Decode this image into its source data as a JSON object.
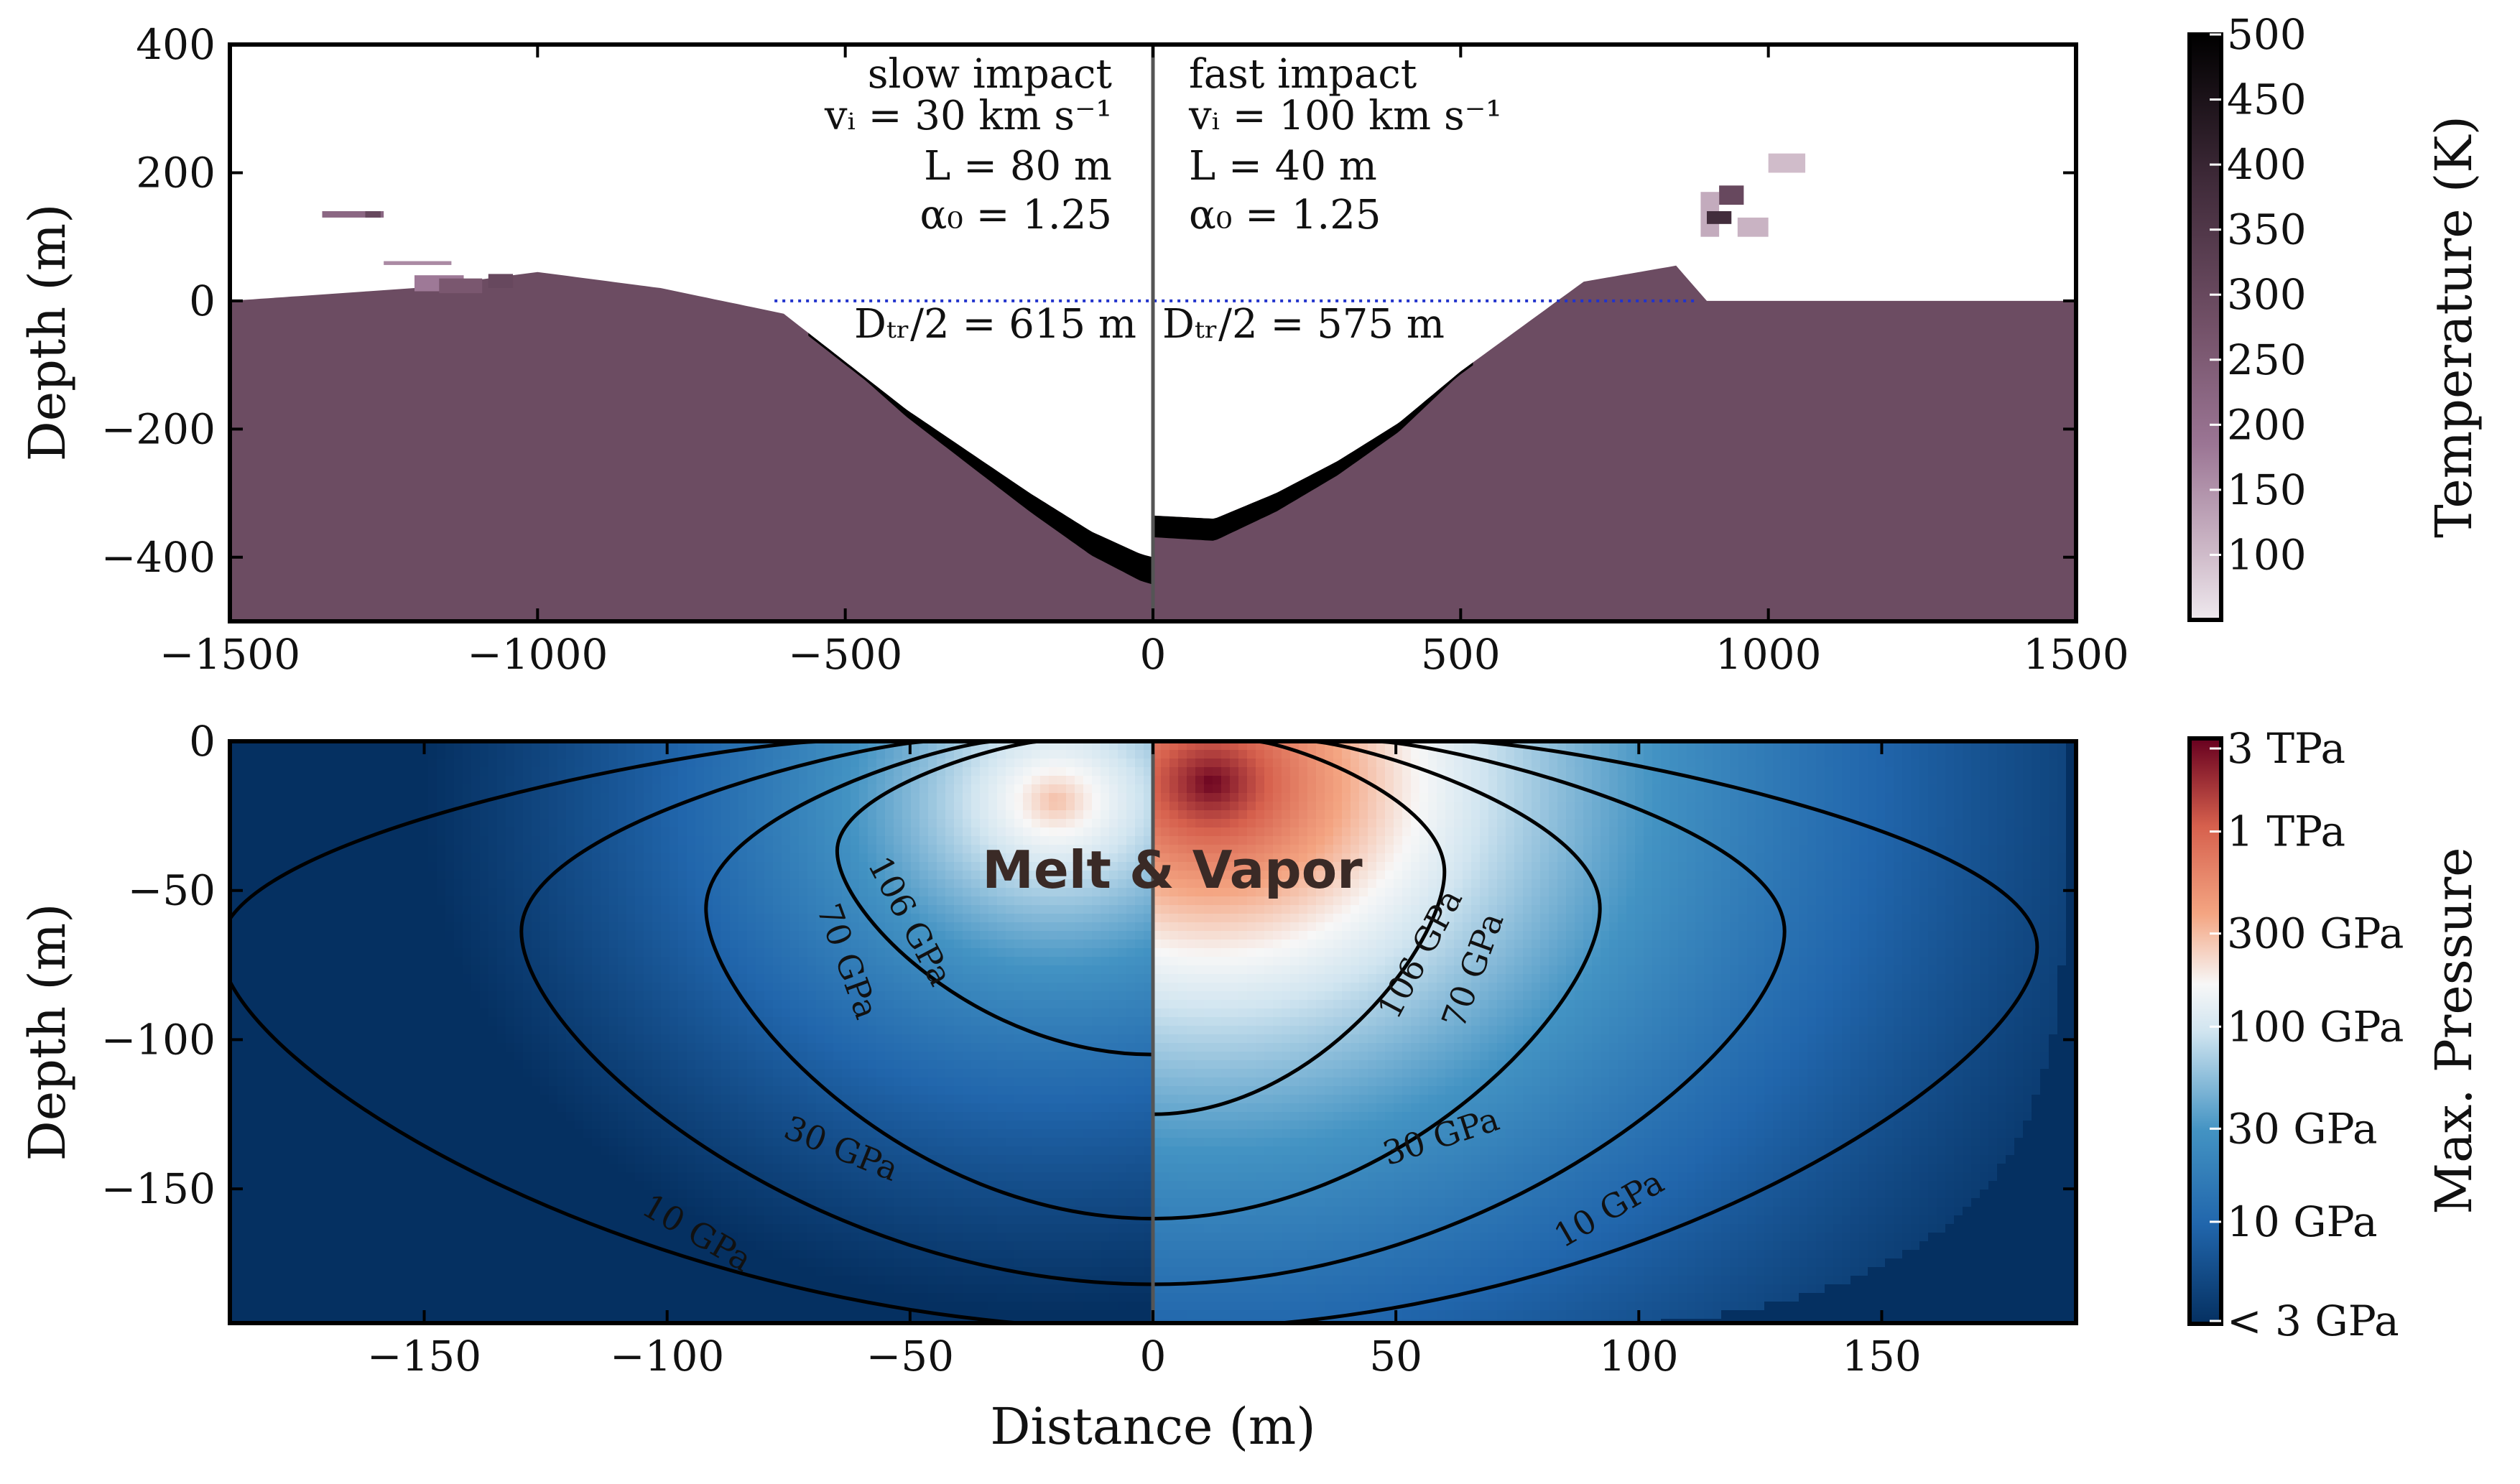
{
  "chart_data": [
    {
      "type": "heatmap",
      "panel": "top",
      "description_key": "temperature field of crater",
      "xlim": [
        -1500,
        1500
      ],
      "ylim": [
        -500,
        400
      ],
      "xticks": [
        "−1500",
        "−1000",
        "−500",
        "0",
        "500",
        "1000",
        "1500"
      ],
      "xtick_values": [
        -1500,
        -1000,
        -500,
        0,
        500,
        1000,
        1500
      ],
      "yticks": [
        "400",
        "200",
        "0",
        "−200",
        "−400"
      ],
      "ytick_values": [
        400,
        200,
        0,
        -200,
        -400
      ],
      "ylabel": "Depth (m)",
      "colorbar": {
        "label": "Temperature (K)",
        "range": [
          50,
          500
        ],
        "ticks": [
          "500",
          "450",
          "400",
          "350",
          "300",
          "250",
          "200",
          "150",
          "100"
        ],
        "tick_values": [
          500,
          450,
          400,
          350,
          300,
          250,
          200,
          150,
          100
        ]
      },
      "left": {
        "label_lines": [
          "slow impact",
          "vᵢ = 30 km s⁻¹",
          "L = 80 m",
          "α₀ = 1.25"
        ],
        "diameter_label": "Dₜᵣ/2 = 615 m",
        "transient_radius": 615,
        "crater_profile": [
          [
            -1500,
            0
          ],
          [
            -1200,
            20
          ],
          [
            -1000,
            45
          ],
          [
            -800,
            20
          ],
          [
            -600,
            -20
          ],
          [
            -400,
            -170
          ],
          [
            -200,
            -300
          ],
          [
            -100,
            -360
          ],
          [
            -20,
            -395
          ],
          [
            0,
            -400
          ]
        ]
      },
      "right": {
        "label_lines": [
          "fast impact",
          "vᵢ = 100 km s⁻¹",
          "L = 40 m",
          "α₀ = 1.25"
        ],
        "diameter_label": "Dₜᵣ/2 = 575 m",
        "transient_radius": 575,
        "crater_profile": [
          [
            0,
            -335
          ],
          [
            100,
            -340
          ],
          [
            200,
            -300
          ],
          [
            300,
            -250
          ],
          [
            400,
            -190
          ],
          [
            500,
            -110
          ],
          [
            600,
            -40
          ],
          [
            700,
            30
          ],
          [
            850,
            55
          ],
          [
            900,
            0
          ],
          [
            1500,
            0
          ]
        ]
      },
      "target_temperature": 290,
      "melt_temperature_band": 500
    },
    {
      "type": "heatmap",
      "panel": "bottom",
      "description_key": "maximum pressure field with contours",
      "xlim": [
        -190,
        190
      ],
      "ylim": [
        -195,
        0
      ],
      "xticks": [
        "−150",
        "−100",
        "−50",
        "0",
        "50",
        "100",
        "150"
      ],
      "xtick_values": [
        -150,
        -100,
        -50,
        0,
        50,
        100,
        150
      ],
      "yticks": [
        "0",
        "−50",
        "−100",
        "−150"
      ],
      "ytick_values": [
        0,
        -50,
        -100,
        -150
      ],
      "xlabel": "Distance (m)",
      "ylabel": "Depth (m)",
      "annotation": "Melt & Vapor",
      "colorbar": {
        "label": "Max. Pressure",
        "scale": "log",
        "range_gpa": [
          3,
          3000
        ],
        "ticks": [
          "3 TPa",
          "1 TPa",
          "300 GPa",
          "100 GPa",
          "30 GPa",
          "10 GPa",
          "< 3 GPa"
        ],
        "tick_values_gpa": [
          3000,
          1000,
          300,
          100,
          30,
          10,
          3
        ]
      },
      "contours": [
        {
          "label": "106 GPa",
          "level_gpa": 106,
          "left_x": 65,
          "left_depth": 105,
          "right_x": 60,
          "right_depth": 125
        },
        {
          "label": "70 GPa",
          "level_gpa": 70,
          "left_x": 92,
          "left_depth": 160,
          "right_x": 92,
          "right_depth": 160
        },
        {
          "label": "30 GPa",
          "level_gpa": 30,
          "left_x": 130,
          "left_depth": 182,
          "right_x": 130,
          "right_depth": 182
        },
        {
          "label": "10 GPa",
          "level_gpa": 10,
          "left_x": 192,
          "left_depth": 197,
          "right_x": 182,
          "right_depth": 197
        }
      ],
      "left_peak_gpa": 300,
      "right_peak_gpa": 3000
    }
  ]
}
